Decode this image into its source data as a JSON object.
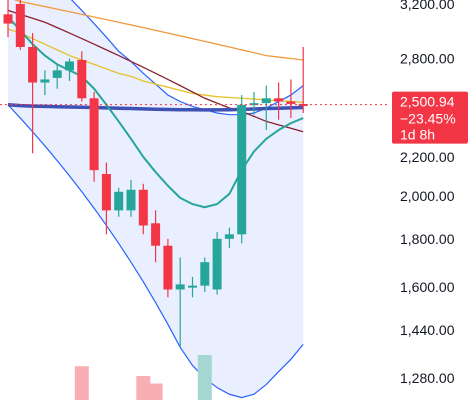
{
  "chart_data": {
    "type": "candlestick",
    "y_axis": {
      "scale": "log",
      "side": "right",
      "ylim": [
        1180,
        3300
      ],
      "ticks": [
        3200,
        2800,
        2500,
        2200,
        2000,
        1800,
        1600,
        1440,
        1280
      ],
      "tick_labels": [
        "3,200.00",
        "2,800.00",
        "2,500.00",
        "2,200.00",
        "2,000.00",
        "1,800.00",
        "1,600.00",
        "1,440.00",
        "1,280.00"
      ]
    },
    "grid": false,
    "last_price": {
      "value": 2500.94,
      "label": "2,500.94",
      "change_label": "−23.45%",
      "countdown_label": "1d 8h",
      "color": "#f23645"
    },
    "candles": [
      {
        "o": 3120,
        "h": 3260,
        "l": 2950,
        "c": 3050
      },
      {
        "o": 3200,
        "h": 3260,
        "l": 2860,
        "c": 2880
      },
      {
        "o": 2880,
        "h": 2980,
        "l": 2220,
        "c": 2640
      },
      {
        "o": 2640,
        "h": 2720,
        "l": 2560,
        "c": 2660
      },
      {
        "o": 2670,
        "h": 2760,
        "l": 2600,
        "c": 2720
      },
      {
        "o": 2720,
        "h": 2800,
        "l": 2650,
        "c": 2780
      },
      {
        "o": 2790,
        "h": 2850,
        "l": 2520,
        "c": 2540
      },
      {
        "o": 2540,
        "h": 2580,
        "l": 2070,
        "c": 2130
      },
      {
        "o": 2110,
        "h": 2170,
        "l": 1820,
        "c": 1930
      },
      {
        "o": 1930,
        "h": 2040,
        "l": 1900,
        "c": 2020
      },
      {
        "o": 1930,
        "h": 2080,
        "l": 1900,
        "c": 2030
      },
      {
        "o": 2030,
        "h": 2060,
        "l": 1820,
        "c": 1860
      },
      {
        "o": 1870,
        "h": 1930,
        "l": 1700,
        "c": 1770
      },
      {
        "o": 1770,
        "h": 1800,
        "l": 1560,
        "c": 1590
      },
      {
        "o": 1590,
        "h": 1720,
        "l": 1380,
        "c": 1610
      },
      {
        "o": 1600,
        "h": 1640,
        "l": 1560,
        "c": 1605
      },
      {
        "o": 1605,
        "h": 1720,
        "l": 1580,
        "c": 1700
      },
      {
        "o": 1590,
        "h": 1830,
        "l": 1570,
        "c": 1800
      },
      {
        "o": 1800,
        "h": 1850,
        "l": 1760,
        "c": 1820
      },
      {
        "o": 1820,
        "h": 2560,
        "l": 1780,
        "c": 2500
      },
      {
        "o": 2500,
        "h": 2580,
        "l": 2440,
        "c": 2510
      },
      {
        "o": 2510,
        "h": 2620,
        "l": 2350,
        "c": 2540
      },
      {
        "o": 2540,
        "h": 2640,
        "l": 2410,
        "c": 2520
      },
      {
        "o": 2520,
        "h": 2660,
        "l": 2420,
        "c": 2505
      },
      {
        "o": 2505,
        "h": 2880,
        "l": 2450,
        "c": 2500
      }
    ],
    "series": [
      {
        "type": "line",
        "color": "#e6c229",
        "values": [
          3010,
          2980,
          2940,
          2900,
          2860,
          2820,
          2790,
          2760,
          2730,
          2700,
          2680,
          2650,
          2630,
          2610,
          2590,
          2570,
          2560,
          2550,
          2545,
          2540,
          2535,
          2530,
          2525,
          2520,
          2515
        ]
      },
      {
        "type": "line",
        "color": "#f09a3e",
        "values": [
          3250,
          3220,
          3200,
          3180,
          3160,
          3140,
          3120,
          3100,
          3080,
          3060,
          3040,
          3020,
          3000,
          2980,
          2960,
          2940,
          2920,
          2900,
          2880,
          2860,
          2840,
          2820,
          2810,
          2800,
          2790
        ]
      },
      {
        "type": "line",
        "color": "#8e1e2e",
        "values": [
          3150,
          3120,
          3090,
          3060,
          3020,
          2980,
          2940,
          2900,
          2860,
          2820,
          2780,
          2740,
          2700,
          2660,
          2620,
          2580,
          2540,
          2510,
          2480,
          2460,
          2430,
          2400,
          2380,
          2360,
          2340
        ]
      },
      {
        "type": "line",
        "color": "#2196f3",
        "values": [
          2500,
          2495,
          2492,
          2490,
          2488,
          2486,
          2485,
          2483,
          2481,
          2479,
          2477,
          2475,
          2473,
          2471,
          2470,
          2470,
          2469,
          2469,
          2470,
          2472,
          2474,
          2477,
          2479,
          2481,
          2483
        ]
      },
      {
        "type": "line",
        "color": "#26a69a",
        "values": [
          3100,
          3000,
          2900,
          2820,
          2760,
          2720,
          2680,
          2600,
          2500,
          2400,
          2300,
          2200,
          2120,
          2050,
          1990,
          1960,
          1945,
          1960,
          2010,
          2130,
          2230,
          2300,
          2350,
          2390,
          2420
        ]
      },
      {
        "type": "band",
        "color": "#2962ff",
        "fill": "#2962ff1a",
        "upper": [
          3800,
          3700,
          3550,
          3450,
          3350,
          3250,
          3150,
          3050,
          2950,
          2850,
          2780,
          2700,
          2630,
          2560,
          2520,
          2490,
          2470,
          2450,
          2440,
          2440,
          2450,
          2480,
          2520,
          2560,
          2620
        ],
        "lower": [
          2500,
          2420,
          2340,
          2260,
          2180,
          2100,
          2020,
          1940,
          1860,
          1780,
          1700,
          1620,
          1540,
          1460,
          1380,
          1320,
          1280,
          1250,
          1230,
          1220,
          1230,
          1260,
          1300,
          1340,
          1390
        ]
      }
    ],
    "volume": [
      {
        "i": 6,
        "value": 0.45,
        "dir": "down"
      },
      {
        "i": 11,
        "value": 0.32,
        "dir": "down"
      },
      {
        "i": 12,
        "value": 0.22,
        "dir": "down"
      },
      {
        "i": 16,
        "value": 0.6,
        "dir": "up"
      }
    ],
    "colors": {
      "up": "#26a69a",
      "down": "#f23645",
      "volume_up": "#a5d6d1",
      "volume_down": "#f8aeb2",
      "axis_text": "#131722"
    }
  }
}
